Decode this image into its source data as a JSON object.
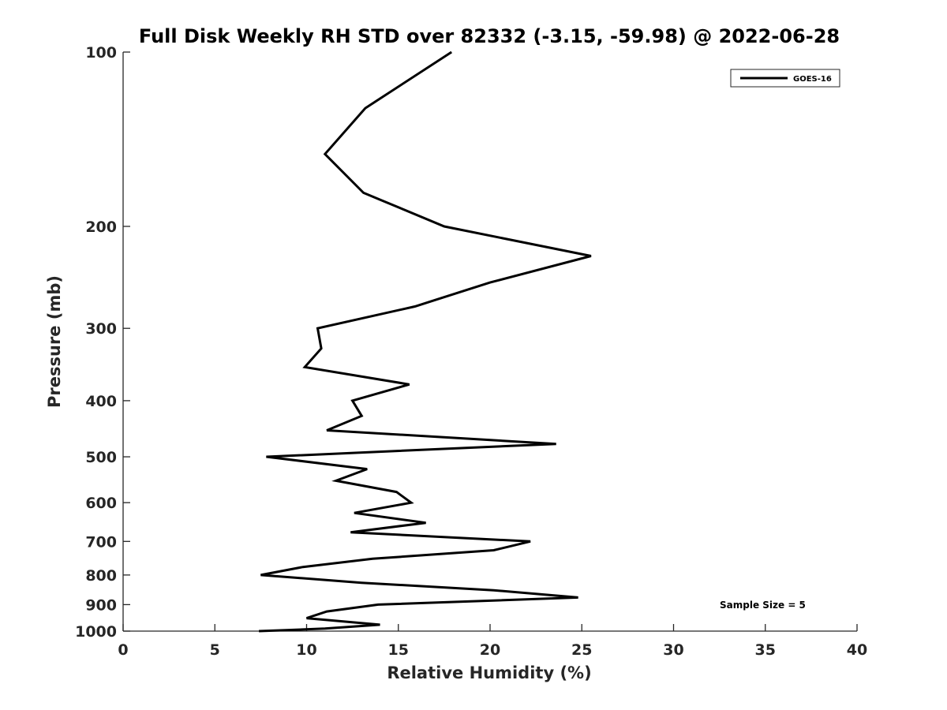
{
  "chart_data": {
    "type": "line",
    "title": "Full Disk Weekly RH STD over 82332 (-3.15, -59.98) @ 2022-06-28",
    "xlabel": "Relative Humidity (%)",
    "ylabel": "Pressure (mb)",
    "xlim": [
      0,
      40
    ],
    "ylim": [
      100,
      1000
    ],
    "y_scale": "log",
    "y_reversed": true,
    "x_ticks": [
      0,
      5,
      10,
      15,
      20,
      25,
      30,
      35,
      40
    ],
    "y_ticks": [
      100,
      200,
      300,
      400,
      500,
      600,
      700,
      800,
      900,
      1000
    ],
    "grid": false,
    "legend_position": "top-right",
    "annotation": "Sample Size = 5",
    "series": [
      {
        "name": "GOES-16",
        "color": "#000000",
        "points": [
          {
            "rh": 17.9,
            "p": 100
          },
          {
            "rh": 13.2,
            "p": 125
          },
          {
            "rh": 11.0,
            "p": 150
          },
          {
            "rh": 13.1,
            "p": 175
          },
          {
            "rh": 17.5,
            "p": 200
          },
          {
            "rh": 25.5,
            "p": 225
          },
          {
            "rh": 20.0,
            "p": 250
          },
          {
            "rh": 15.9,
            "p": 275
          },
          {
            "rh": 10.6,
            "p": 300
          },
          {
            "rh": 10.8,
            "p": 325
          },
          {
            "rh": 9.9,
            "p": 350
          },
          {
            "rh": 15.6,
            "p": 375
          },
          {
            "rh": 12.5,
            "p": 400
          },
          {
            "rh": 13.0,
            "p": 425
          },
          {
            "rh": 11.1,
            "p": 450
          },
          {
            "rh": 23.6,
            "p": 475
          },
          {
            "rh": 7.8,
            "p": 500
          },
          {
            "rh": 13.3,
            "p": 525
          },
          {
            "rh": 11.6,
            "p": 550
          },
          {
            "rh": 14.9,
            "p": 575
          },
          {
            "rh": 15.7,
            "p": 600
          },
          {
            "rh": 12.6,
            "p": 625
          },
          {
            "rh": 16.5,
            "p": 650
          },
          {
            "rh": 12.4,
            "p": 675
          },
          {
            "rh": 22.2,
            "p": 700
          },
          {
            "rh": 20.2,
            "p": 725
          },
          {
            "rh": 13.6,
            "p": 750
          },
          {
            "rh": 9.8,
            "p": 775
          },
          {
            "rh": 7.5,
            "p": 800
          },
          {
            "rh": 13.0,
            "p": 825
          },
          {
            "rh": 20.2,
            "p": 850
          },
          {
            "rh": 24.8,
            "p": 875
          },
          {
            "rh": 13.9,
            "p": 900
          },
          {
            "rh": 11.1,
            "p": 925
          },
          {
            "rh": 10.0,
            "p": 950
          },
          {
            "rh": 14.0,
            "p": 975
          },
          {
            "rh": 11.0,
            "p": 990
          },
          {
            "rh": 7.4,
            "p": 1000
          }
        ]
      }
    ]
  }
}
